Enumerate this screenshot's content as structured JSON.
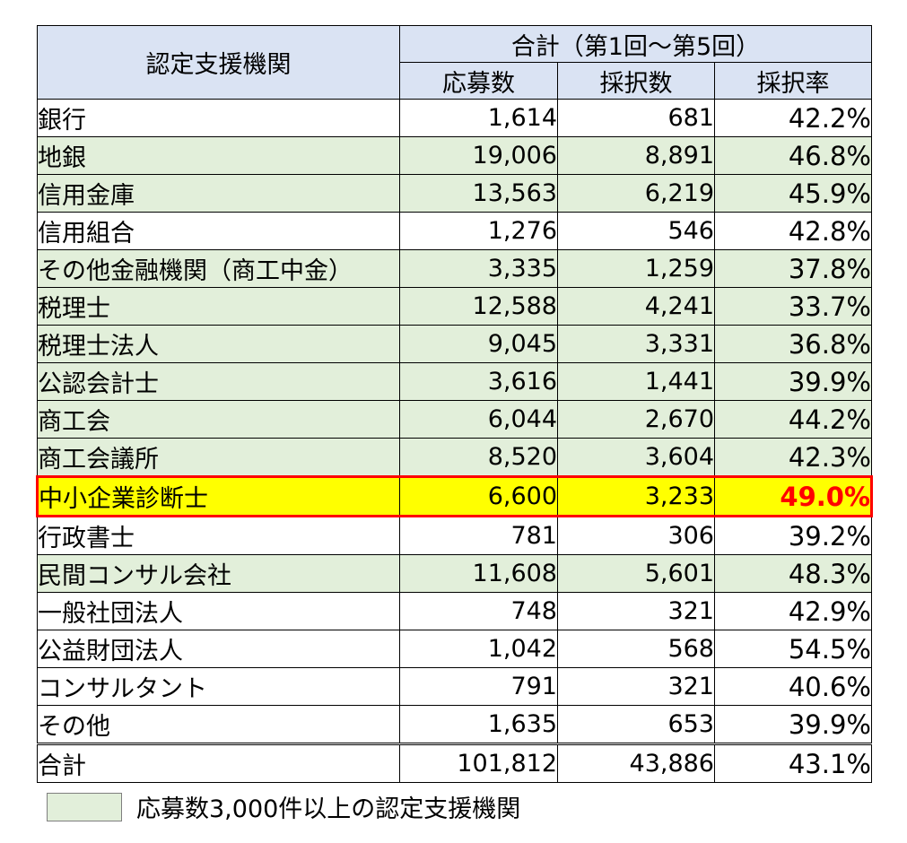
{
  "table": {
    "header_row1": {
      "org_col": "認定支援機関",
      "group": "合計（第1回～第5回）"
    },
    "header_row2": [
      "応募数",
      "採択数",
      "採択率"
    ],
    "rows": [
      {
        "name": "銀行",
        "applications": "1,614",
        "adopted": "681",
        "rate": "42.2%",
        "highlight": "none"
      },
      {
        "name": "地銀",
        "applications": "19,006",
        "adopted": "8,891",
        "rate": "46.8%",
        "highlight": "green"
      },
      {
        "name": "信用金庫",
        "applications": "13,563",
        "adopted": "6,219",
        "rate": "45.9%",
        "highlight": "green"
      },
      {
        "name": "信用組合",
        "applications": "1,276",
        "adopted": "546",
        "rate": "42.8%",
        "highlight": "none"
      },
      {
        "name": "その他金融機関（商工中金）",
        "applications": "3,335",
        "adopted": "1,259",
        "rate": "37.8%",
        "highlight": "green"
      },
      {
        "name": "税理士",
        "applications": "12,588",
        "adopted": "4,241",
        "rate": "33.7%",
        "highlight": "green"
      },
      {
        "name": "税理士法人",
        "applications": "9,045",
        "adopted": "3,331",
        "rate": "36.8%",
        "highlight": "green"
      },
      {
        "name": "公認会計士",
        "applications": "3,616",
        "adopted": "1,441",
        "rate": "39.9%",
        "highlight": "green"
      },
      {
        "name": "商工会",
        "applications": "6,044",
        "adopted": "2,670",
        "rate": "44.2%",
        "highlight": "green"
      },
      {
        "name": "商工会議所",
        "applications": "8,520",
        "adopted": "3,604",
        "rate": "42.3%",
        "highlight": "green"
      },
      {
        "name": "中小企業診断士",
        "applications": "6,600",
        "adopted": "3,233",
        "rate": "49.0%",
        "highlight": "yellow"
      },
      {
        "name": "行政書士",
        "applications": "781",
        "adopted": "306",
        "rate": "39.2%",
        "highlight": "none"
      },
      {
        "name": "民間コンサル会社",
        "applications": "11,608",
        "adopted": "5,601",
        "rate": "48.3%",
        "highlight": "green"
      },
      {
        "name": "一般社団法人",
        "applications": "748",
        "adopted": "321",
        "rate": "42.9%",
        "highlight": "none"
      },
      {
        "name": "公益財団法人",
        "applications": "1,042",
        "adopted": "568",
        "rate": "54.5%",
        "highlight": "none"
      },
      {
        "name": "コンサルタント",
        "applications": "791",
        "adopted": "321",
        "rate": "40.6%",
        "highlight": "none"
      },
      {
        "name": "その他",
        "applications": "1,635",
        "adopted": "653",
        "rate": "39.9%",
        "highlight": "none"
      }
    ],
    "total": {
      "name": "合計",
      "applications": "101,812",
      "adopted": "43,886",
      "rate": "43.1%"
    }
  },
  "legend": {
    "label": "応募数3,000件以上の認定支援機関",
    "swatch_color": "#e2efda"
  },
  "colors": {
    "header_bg": "#dae3f3",
    "green_bg": "#e2efda",
    "highlight_bg": "#ffff00",
    "highlight_border": "#ff0000"
  }
}
